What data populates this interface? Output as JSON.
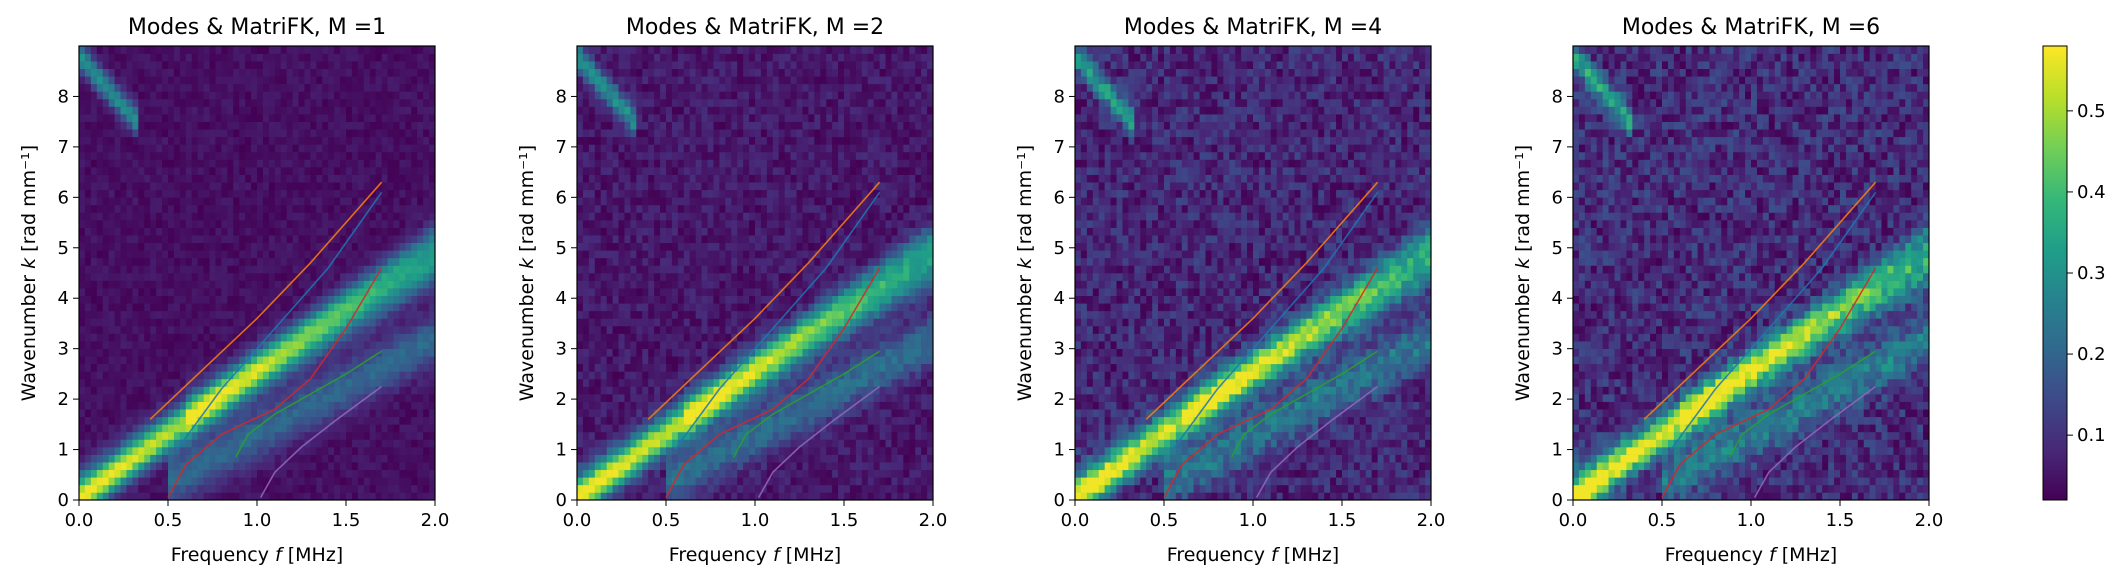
{
  "chart_data": [
    {
      "type": "heatmap",
      "title": "Modes & MatriFK, M =1",
      "xlabel_text": "Frequency",
      "xlabel_var": "f",
      "xlabel_unit": "[MHz]",
      "ylabel_text": "Wavenumber",
      "ylabel_var": "k",
      "ylabel_unit": "[rad mm⁻¹]",
      "xlim": [
        0,
        2.0
      ],
      "ylim": [
        0,
        9.0
      ],
      "xticks": [
        "0.0",
        "0.5",
        "1.0",
        "1.5",
        "2.0"
      ],
      "yticks": [
        "0",
        "1",
        "2",
        "3",
        "4",
        "5",
        "6",
        "7",
        "8"
      ],
      "noise": 0.08
    },
    {
      "type": "heatmap",
      "title": "Modes & MatriFK, M =2",
      "xlabel_text": "Frequency",
      "xlabel_var": "f",
      "xlabel_unit": "[MHz]",
      "ylabel_text": "Wavenumber",
      "ylabel_var": "k",
      "ylabel_unit": "[rad mm⁻¹]",
      "xlim": [
        0,
        2.0
      ],
      "ylim": [
        0,
        9.0
      ],
      "xticks": [
        "0.0",
        "0.5",
        "1.0",
        "1.5",
        "2.0"
      ],
      "yticks": [
        "0",
        "1",
        "2",
        "3",
        "4",
        "5",
        "6",
        "7",
        "8"
      ],
      "noise": 0.13
    },
    {
      "type": "heatmap",
      "title": "Modes & MatriFK, M =4",
      "xlabel_text": "Frequency",
      "xlabel_var": "f",
      "xlabel_unit": "[MHz]",
      "ylabel_text": "Wavenumber",
      "ylabel_var": "k",
      "ylabel_unit": "[rad mm⁻¹]",
      "xlim": [
        0,
        2.0
      ],
      "ylim": [
        0,
        9.0
      ],
      "xticks": [
        "0.0",
        "0.5",
        "1.0",
        "1.5",
        "2.0"
      ],
      "yticks": [
        "0",
        "1",
        "2",
        "3",
        "4",
        "5",
        "6",
        "7",
        "8"
      ],
      "noise": 0.22
    },
    {
      "type": "heatmap",
      "title": "Modes & MatriFK, M =6",
      "xlabel_text": "Frequency",
      "xlabel_var": "f",
      "xlabel_unit": "[MHz]",
      "ylabel_text": "Wavenumber",
      "ylabel_var": "k",
      "ylabel_unit": "[rad mm⁻¹]",
      "xlim": [
        0,
        2.0
      ],
      "ylim": [
        0,
        9.0
      ],
      "xticks": [
        "0.0",
        "0.5",
        "1.0",
        "1.5",
        "2.0"
      ],
      "yticks": [
        "0",
        "1",
        "2",
        "3",
        "4",
        "5",
        "6",
        "7",
        "8"
      ],
      "noise": 0.25
    }
  ],
  "dispersion_curves": [
    {
      "color": "#ff7f0e",
      "points": [
        [
          0.4,
          1.6
        ],
        [
          0.7,
          2.6
        ],
        [
          1.0,
          3.6
        ],
        [
          1.3,
          4.7
        ],
        [
          1.7,
          6.3
        ]
      ]
    },
    {
      "color": "#1f77b4",
      "points": [
        [
          0.55,
          1.0
        ],
        [
          0.8,
          2.2
        ],
        [
          1.1,
          3.4
        ],
        [
          1.4,
          4.6
        ],
        [
          1.7,
          6.1
        ]
      ]
    },
    {
      "color": "#d62728",
      "points": [
        [
          0.5,
          0.05
        ],
        [
          0.6,
          0.7
        ],
        [
          0.8,
          1.3
        ],
        [
          1.1,
          1.8
        ],
        [
          1.3,
          2.4
        ],
        [
          1.5,
          3.4
        ],
        [
          1.7,
          4.6
        ]
      ]
    },
    {
      "color": "#2ca02c",
      "points": [
        [
          0.88,
          0.85
        ],
        [
          0.95,
          1.3
        ],
        [
          1.1,
          1.7
        ],
        [
          1.3,
          2.1
        ],
        [
          1.5,
          2.5
        ],
        [
          1.7,
          2.95
        ]
      ]
    },
    {
      "color": "#9467bd",
      "points": [
        [
          1.02,
          0.05
        ],
        [
          1.1,
          0.55
        ],
        [
          1.25,
          1.05
        ],
        [
          1.45,
          1.6
        ],
        [
          1.7,
          2.25
        ]
      ]
    }
  ],
  "colorbar": {
    "ticks": [
      "0.1",
      "0.2",
      "0.3",
      "0.4",
      "0.5"
    ],
    "tick_values": [
      0.1,
      0.2,
      0.3,
      0.4,
      0.5
    ],
    "vmin": 0.02,
    "vmax": 0.58,
    "colormap": [
      "#440154",
      "#482878",
      "#3e4989",
      "#31688e",
      "#26828e",
      "#1f9e89",
      "#35b779",
      "#6ece58",
      "#b5de2b",
      "#fde725"
    ]
  }
}
